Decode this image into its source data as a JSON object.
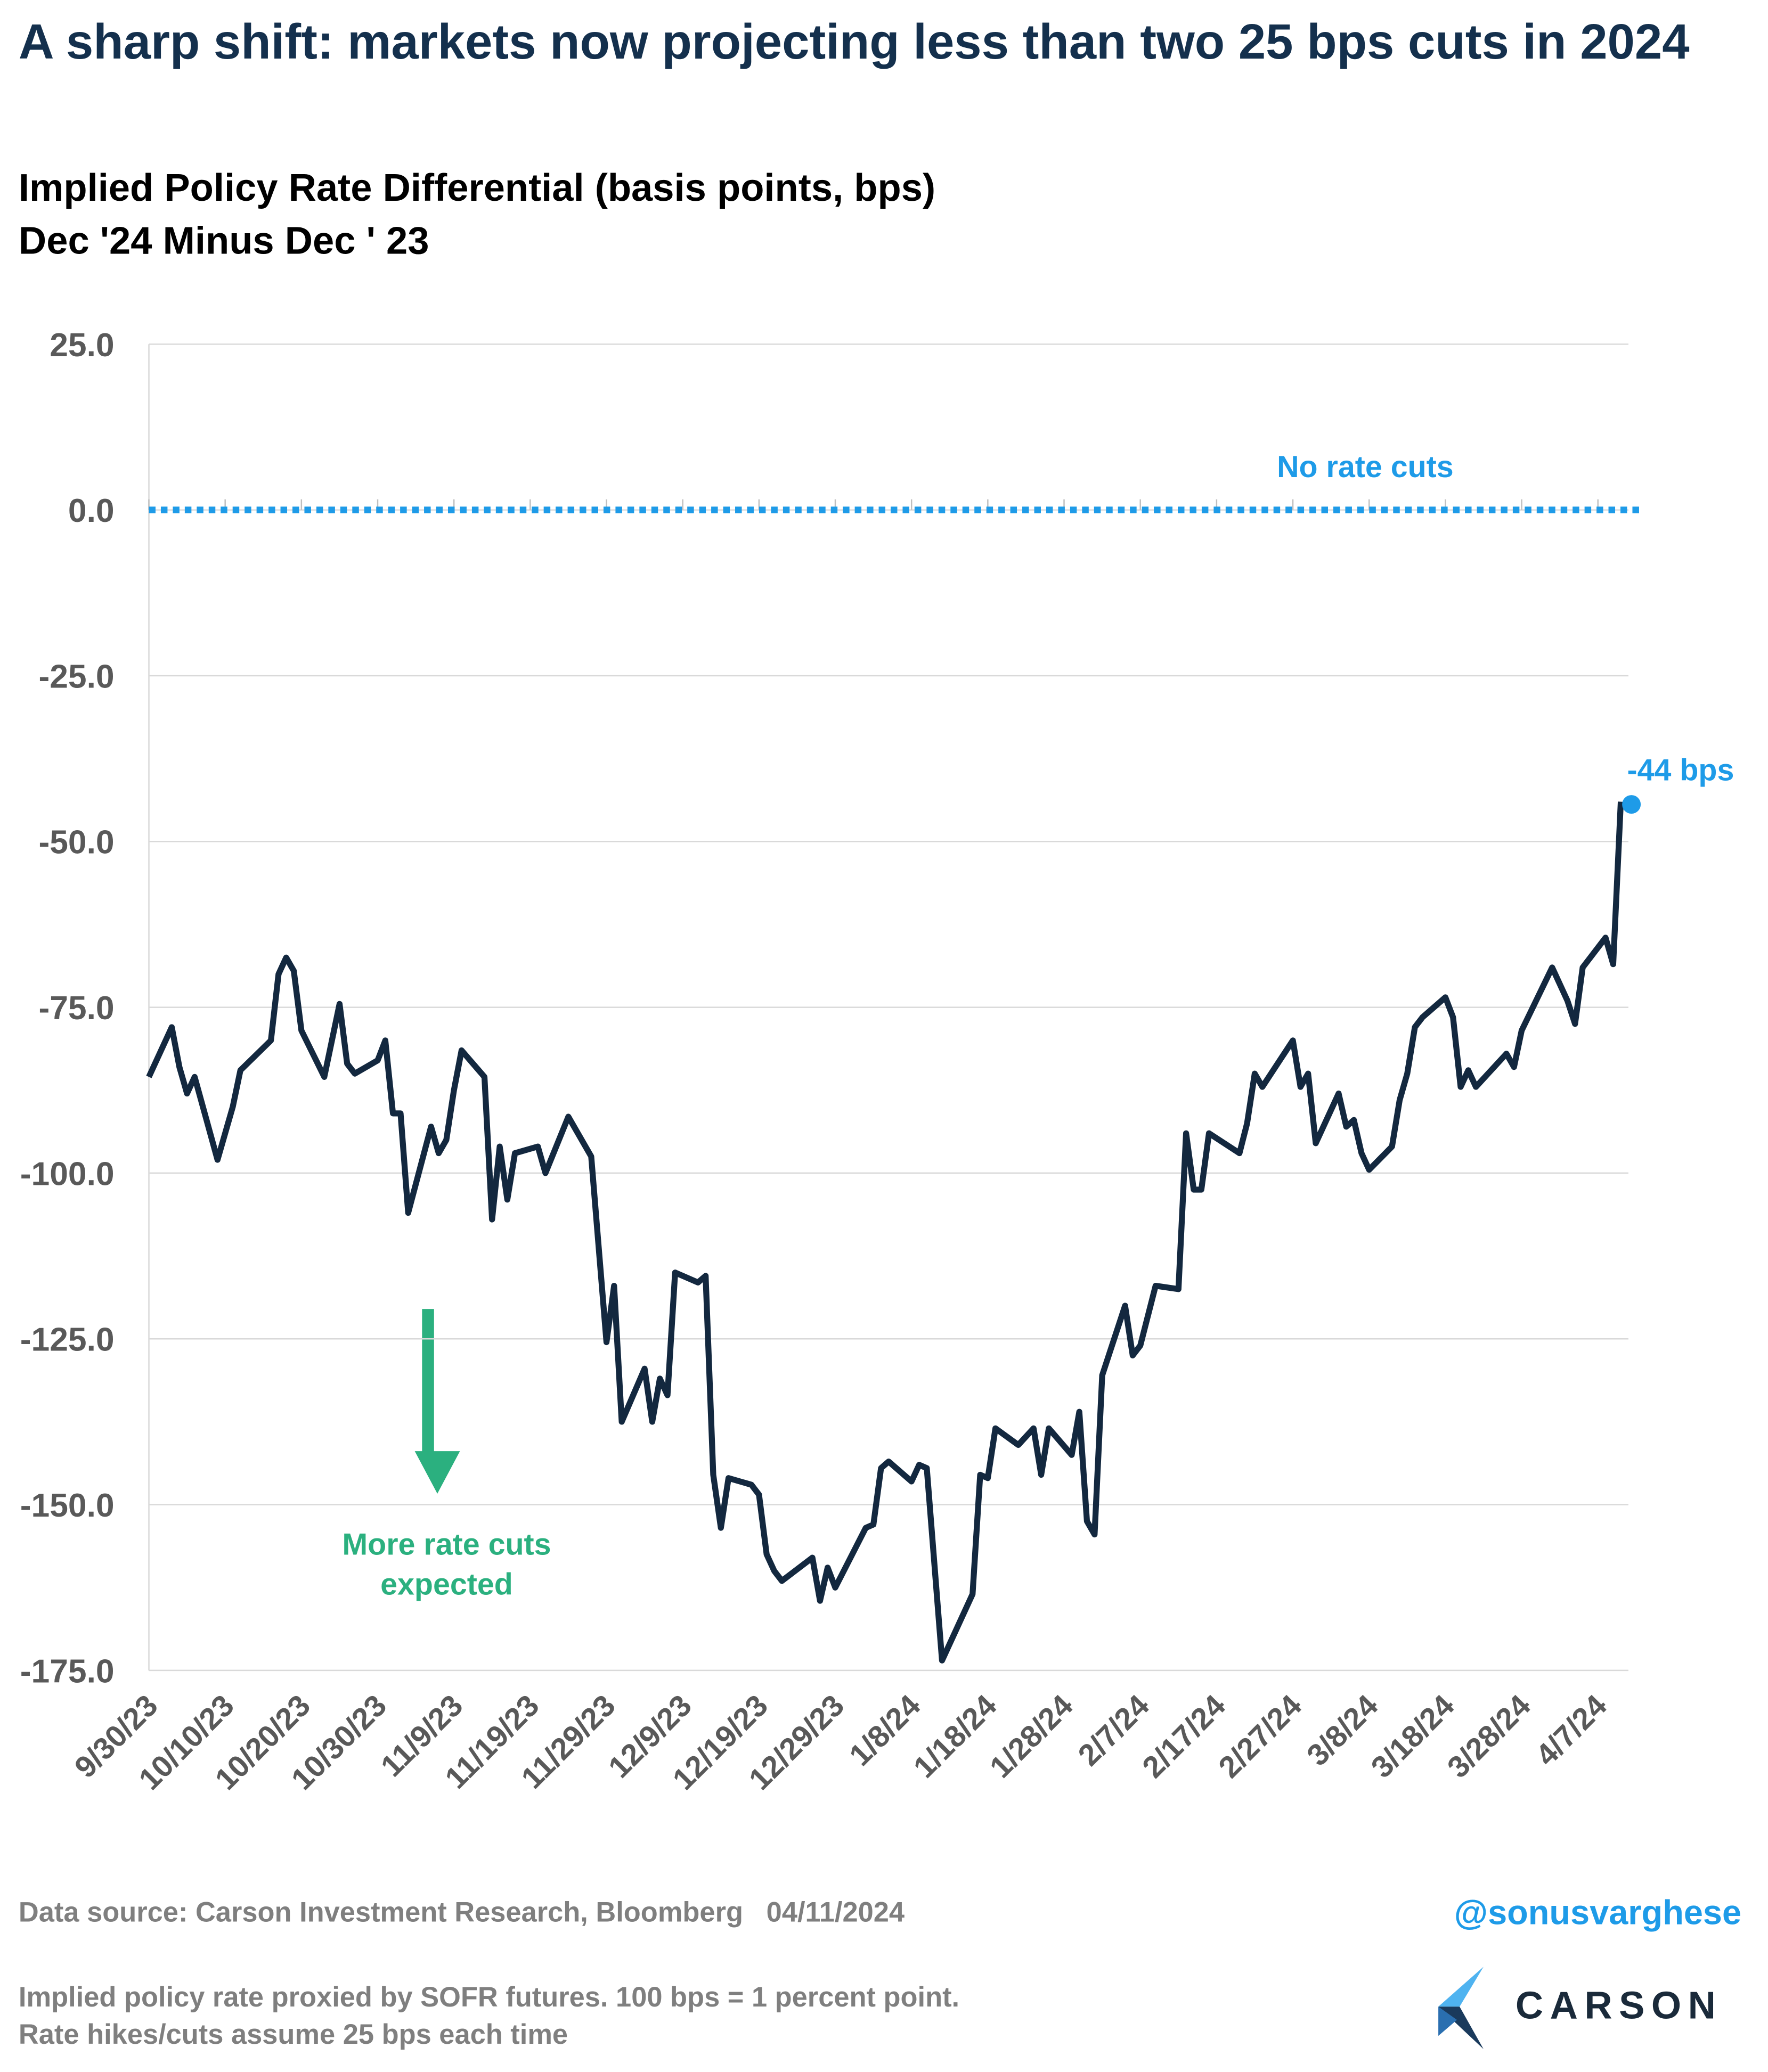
{
  "chart_data": {
    "type": "line",
    "title": "A sharp shift: markets now projecting less than two 25 bps cuts in 2024",
    "subtitle": [
      "Implied Policy Rate Differential (basis points, bps)",
      "Dec '24 Minus Dec ' 23"
    ],
    "x": [
      "9/30/23",
      "10/3/23",
      "10/4/23",
      "10/5/23",
      "10/6/23",
      "10/9/23",
      "10/10/23",
      "10/11/23",
      "10/12/23",
      "10/16/23",
      "10/17/23",
      "10/18/23",
      "10/19/23",
      "10/20/23",
      "10/23/23",
      "10/25/23",
      "10/26/23",
      "10/27/23",
      "10/30/23",
      "10/31/23",
      "11/1/23",
      "11/2/23",
      "11/3/23",
      "11/6/23",
      "11/7/23",
      "11/8/23",
      "11/9/23",
      "11/10/23",
      "11/13/23",
      "11/14/23",
      "11/15/23",
      "11/16/23",
      "11/17/23",
      "11/20/23",
      "11/21/23",
      "11/24/23",
      "11/27/23",
      "11/29/23",
      "11/30/23",
      "12/1/23",
      "12/4/23",
      "12/5/23",
      "12/6/23",
      "12/7/23",
      "12/8/23",
      "12/11/23",
      "12/12/23",
      "12/13/23",
      "12/14/23",
      "12/15/23",
      "12/18/23",
      "12/19/23",
      "12/20/23",
      "12/21/23",
      "12/22/23",
      "12/26/23",
      "12/27/23",
      "12/28/23",
      "12/29/23",
      "1/2/24",
      "1/3/24",
      "1/4/24",
      "1/5/24",
      "1/8/24",
      "1/9/24",
      "1/10/24",
      "1/12/24",
      "1/16/24",
      "1/17/24",
      "1/18/24",
      "1/19/24",
      "1/22/24",
      "1/24/24",
      "1/25/24",
      "1/26/24",
      "1/29/24",
      "1/30/24",
      "1/31/24",
      "2/1/24",
      "2/2/24",
      "2/5/24",
      "2/6/24",
      "2/7/24",
      "2/9/24",
      "2/12/24",
      "2/13/24",
      "2/14/24",
      "2/15/24",
      "2/16/24",
      "2/20/24",
      "2/21/24",
      "2/22/24",
      "2/23/24",
      "2/27/24",
      "2/28/24",
      "2/29/24",
      "3/1/24",
      "3/4/24",
      "3/5/24",
      "3/6/24",
      "3/7/24",
      "3/8/24",
      "3/11/24",
      "3/12/24",
      "3/13/24",
      "3/14/24",
      "3/15/24",
      "3/18/24",
      "3/19/24",
      "3/20/24",
      "3/21/24",
      "3/22/24",
      "3/26/24",
      "3/27/24",
      "3/28/24",
      "4/1/24",
      "4/3/24",
      "4/4/24",
      "4/5/24",
      "4/8/24",
      "4/9/24",
      "4/10/24"
    ],
    "series": [
      {
        "name": "Implied Policy Rate Differential",
        "color": "#13283f",
        "values": [
          -85.5,
          -78,
          -84,
          -88,
          -85.5,
          -98,
          -94,
          -90,
          -84.5,
          -80,
          -70,
          -67.5,
          -69.5,
          -78.5,
          -85.5,
          -74.5,
          -83.5,
          -85,
          -83,
          -80,
          -91,
          -91,
          -106,
          -93,
          -97,
          -95,
          -87.5,
          -81.5,
          -85.5,
          -107,
          -96,
          -104,
          -97,
          -96,
          -100,
          -91.5,
          -97.5,
          -125.5,
          -117,
          -137.5,
          -129.5,
          -137.5,
          -131,
          -133.5,
          -115,
          -116.5,
          -115.5,
          -145.5,
          -153.5,
          -146,
          -147,
          -148.5,
          -157.5,
          -160,
          -161.5,
          -158,
          -164.5,
          -159.5,
          -162.5,
          -153.5,
          -153,
          -144.5,
          -143.5,
          -146.5,
          -144,
          -144.5,
          -173.5,
          -163.5,
          -145.5,
          -146,
          -138.5,
          -141,
          -138.5,
          -145.5,
          -138.5,
          -142.5,
          -136,
          -152.5,
          -154.5,
          -130.5,
          -120,
          -127.5,
          -126,
          -117,
          -117.5,
          -94,
          -102.5,
          -102.5,
          -94,
          -97,
          -92.5,
          -85,
          -87,
          -80,
          -87,
          -85,
          -95.5,
          -88,
          -93,
          -92,
          -97,
          -99.5,
          -96,
          -89,
          -85,
          -78,
          -76.5,
          -73.5,
          -76.5,
          -87,
          -84.5,
          -87,
          -82,
          -84,
          -78.5,
          -69,
          -74,
          -77.5,
          -69,
          -64.5,
          -68.5,
          -44
        ]
      }
    ],
    "end_label": "-44 bps",
    "end_color": "#1e9be8",
    "xlim": [
      "9/30/23",
      "4/11/24"
    ],
    "xticks": [
      "9/30/23",
      "10/10/23",
      "10/20/23",
      "10/30/23",
      "11/9/23",
      "11/19/23",
      "11/29/23",
      "12/9/23",
      "12/19/23",
      "12/29/23",
      "1/8/24",
      "1/18/24",
      "1/28/24",
      "2/7/24",
      "2/17/24",
      "2/27/24",
      "3/8/24",
      "3/18/24",
      "3/28/24",
      "4/7/24"
    ],
    "ylim": [
      -175,
      25
    ],
    "yticks": [
      {
        "value": 25,
        "label": "25.0"
      },
      {
        "value": 0,
        "label": "0.0"
      },
      {
        "value": -25,
        "label": "-25.0"
      },
      {
        "value": -50,
        "label": "-50.0"
      },
      {
        "value": -75,
        "label": "-75.0"
      },
      {
        "value": -100,
        "label": "-100.0"
      },
      {
        "value": -125,
        "label": "-125.0"
      },
      {
        "value": -150,
        "label": "-150.0"
      },
      {
        "value": -175,
        "label": "-175.0"
      }
    ],
    "grid": true,
    "reference_line": {
      "value": 0,
      "label": "No rate cuts",
      "color": "#1e9be8"
    },
    "arrow_note": {
      "lines": [
        "More rate cuts",
        "expected"
      ],
      "color": "#2bb07f"
    }
  },
  "footer": {
    "source": "Data source: Carson Investment Research, Bloomberg   04/11/2024",
    "handle": "@sonusvarghese",
    "notes": [
      "Implied policy rate proxied by SOFR futures. 100 bps = 1 percent point.",
      "Rate hikes/cuts assume 25 bps each time"
    ],
    "logo": "CARSON"
  }
}
